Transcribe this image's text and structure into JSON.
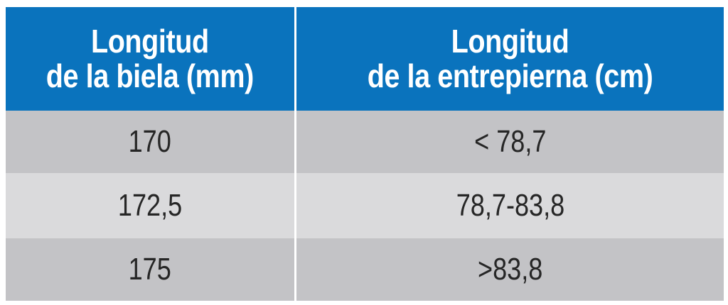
{
  "table": {
    "headers": [
      "Longitud\nde la biela (mm)",
      "Longitud\nde la entrepierna (cm)"
    ],
    "rows": [
      [
        "170",
        "< 78,7"
      ],
      [
        "172,5",
        "78,7-83,8"
      ],
      [
        "175",
        ">83,8"
      ]
    ]
  },
  "colors": {
    "header_bg": "#0a73bd",
    "row_dark": "#c3c3c6",
    "row_light": "#dadadc"
  }
}
